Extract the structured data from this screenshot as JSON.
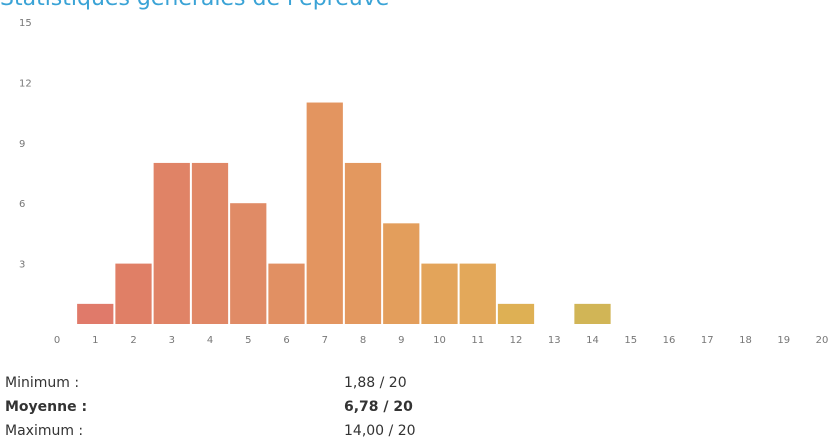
{
  "chart_data": {
    "type": "bar",
    "title": "Statistiques générales de l'épreuve",
    "categories": [
      "0",
      "1",
      "2",
      "3",
      "4",
      "5",
      "6",
      "7",
      "8",
      "9",
      "10",
      "11",
      "12",
      "13",
      "14",
      "15",
      "16",
      "17",
      "18",
      "19",
      "20"
    ],
    "values": [
      0,
      1,
      3,
      8,
      8,
      6,
      3,
      11,
      8,
      5,
      3,
      3,
      1,
      0,
      1,
      0,
      0,
      0,
      0,
      0,
      0
    ],
    "ylim": [
      0,
      15
    ],
    "yticks": [
      3,
      6,
      9,
      12,
      15
    ],
    "grid": false,
    "colors": {
      "0": "#e07a6a",
      "1": "#e07a6a",
      "2": "#e07f66",
      "3": "#e08366",
      "4": "#e08766",
      "5": "#e08b66",
      "6": "#e19063",
      "7": "#e39560",
      "8": "#e3985f",
      "9": "#e39e5c",
      "10": "#e3a45a",
      "11": "#e3a85a",
      "12": "#deb054",
      "13": "#d8b456",
      "14": "#d1b556"
    }
  },
  "stats": [
    {
      "label": "Minimum :",
      "value": "1,88 / 20",
      "bold": false
    },
    {
      "label": "Moyenne :",
      "value": "6,78 / 20",
      "bold": true
    },
    {
      "label": "Maximum :",
      "value": "14,00 / 20",
      "bold": false
    }
  ]
}
